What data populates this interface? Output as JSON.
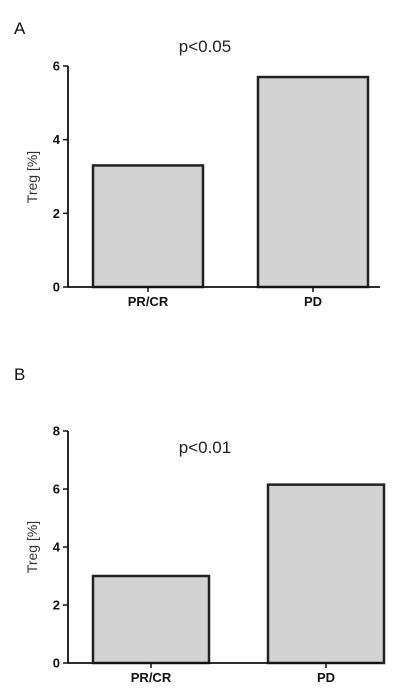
{
  "chart_data": [
    {
      "type": "bar",
      "panel_label": "A",
      "annotation": "p<0.05",
      "ylabel": "Treg [%]",
      "xlabel": "",
      "categories": [
        "PR/CR",
        "PD"
      ],
      "values": [
        3.3,
        5.7
      ],
      "ylim": [
        0,
        6
      ],
      "yticks": [
        0,
        2,
        4,
        6
      ],
      "grid": false,
      "bar_color": "#d3d3d3",
      "edge_color": "#222222"
    },
    {
      "type": "bar",
      "panel_label": "B",
      "annotation": "p<0.01",
      "ylabel": "Treg [%]",
      "xlabel": "",
      "categories": [
        "PR/CR",
        "PD"
      ],
      "values": [
        3.0,
        6.15
      ],
      "ylim": [
        0,
        8
      ],
      "yticks": [
        0,
        2,
        4,
        6,
        8
      ],
      "grid": false,
      "bar_color": "#d3d3d3",
      "edge_color": "#222222"
    }
  ]
}
